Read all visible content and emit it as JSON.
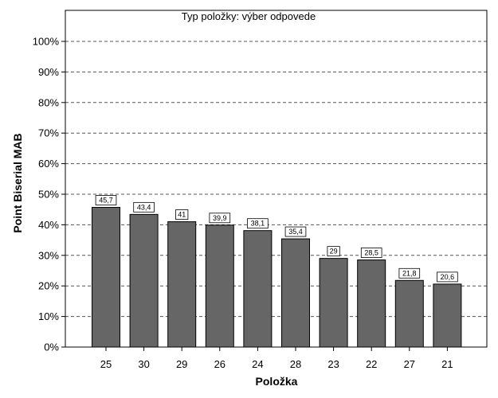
{
  "chart_data": {
    "type": "bar",
    "title": "Typ položky: výber odpovede",
    "xlabel": "Položka",
    "ylabel": "Point Biserial MAB",
    "categories": [
      "25",
      "30",
      "29",
      "26",
      "24",
      "28",
      "23",
      "22",
      "27",
      "21"
    ],
    "values": [
      45.7,
      43.4,
      41,
      39.9,
      38.1,
      35.4,
      29,
      28.5,
      21.8,
      20.6
    ],
    "value_labels": [
      "45,7",
      "43,4",
      "41",
      "39,9",
      "38,1",
      "35,4",
      "29",
      "28,5",
      "21,8",
      "20,6"
    ],
    "yticks": [
      "0%",
      "10%",
      "20%",
      "30%",
      "40%",
      "50%",
      "60%",
      "70%",
      "80%",
      "90%",
      "100%"
    ],
    "ylim": [
      0,
      100
    ],
    "grid": true,
    "bar_color": "#666666"
  }
}
